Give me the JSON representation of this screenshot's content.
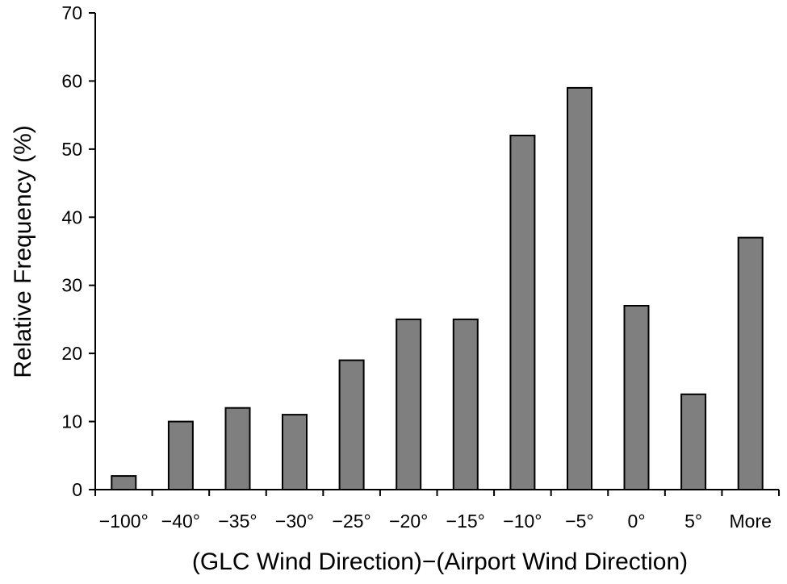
{
  "chart_data": {
    "type": "bar",
    "title": "",
    "xlabel": "(GLC Wind Direction)−(Airport Wind Direction)",
    "ylabel": "Relative Frequency (%)",
    "categories": [
      "−100°",
      "−40°",
      "−35°",
      "−30°",
      "−25°",
      "−20°",
      "−15°",
      "−10°",
      "−5°",
      "0°",
      "5°",
      "More"
    ],
    "values": [
      2,
      10,
      12,
      11,
      19,
      25,
      25,
      52,
      59,
      27,
      14,
      37
    ],
    "ylim": [
      0,
      70
    ],
    "yticks": [
      0,
      10,
      20,
      30,
      40,
      50,
      60,
      70
    ],
    "grid": false,
    "legend": "none",
    "colors": {
      "bar_fill": "#7f7f7f",
      "bar_stroke": "#000000",
      "axis": "#000000"
    }
  }
}
